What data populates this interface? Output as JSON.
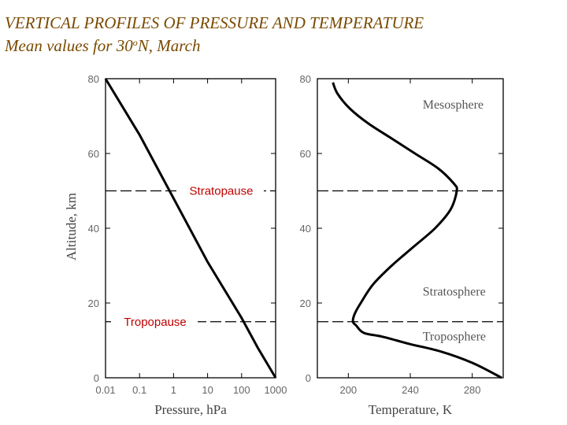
{
  "title_line1": "VERTICAL PROFILES OF PRESSURE AND TEMPERATURE",
  "subtitle": {
    "prefix": "Mean values for 30",
    "sup": "o",
    "suffix": "N, March"
  },
  "colors": {
    "title": "#7a4a00",
    "annotation": "#c00000",
    "curve": "#000000"
  },
  "chart_data": [
    {
      "type": "line",
      "xlabel": "Pressure, hPa",
      "ylabel": "Altitude, km",
      "xscale": "log",
      "xlim": [
        0.01,
        1000
      ],
      "ylim": [
        0,
        80
      ],
      "xticks": [
        0.01,
        0.1,
        1,
        10,
        100,
        1000
      ],
      "xtick_labels": [
        "0.01",
        "0.1",
        "1",
        "10",
        "100",
        "1000"
      ],
      "yticks": [
        0,
        20,
        40,
        60,
        80
      ],
      "ytick_labels": [
        "0",
        "20",
        "40",
        "60",
        "80"
      ],
      "series": [
        {
          "x": [
            0.01,
            0.1,
            1,
            10,
            100,
            300,
            1000
          ],
          "y": [
            80,
            65,
            48,
            31,
            16,
            8,
            0
          ]
        }
      ],
      "reference_lines": [
        {
          "y": 50,
          "label": "Stratopause",
          "style": "dashed"
        },
        {
          "y": 15,
          "label": "Tropopause",
          "style": "dashed"
        }
      ]
    },
    {
      "type": "line",
      "xlabel": "Temperature, K",
      "ylabel": "",
      "xlim": [
        180,
        300
      ],
      "ylim": [
        0,
        80
      ],
      "xticks": [
        200,
        240,
        280
      ],
      "xtick_labels": [
        "200",
        "240",
        "280"
      ],
      "yticks": [
        0,
        20,
        40,
        60,
        80
      ],
      "ytick_labels": [
        "0",
        "20",
        "40",
        "60",
        "80"
      ],
      "series": [
        {
          "x": [
            299,
            280,
            260,
            240,
            222,
            210,
            205,
            203,
            204,
            208,
            216,
            228,
            242,
            256,
            266,
            270,
            268,
            258,
            243,
            228,
            213,
            201,
            193,
            190
          ],
          "y": [
            0,
            4,
            7,
            9,
            11,
            12,
            14,
            15,
            17,
            20,
            25,
            30,
            35,
            40,
            45,
            50,
            52,
            56,
            60,
            64,
            68,
            72,
            76,
            79
          ]
        }
      ],
      "reference_lines": [
        {
          "y": 50,
          "style": "dashed"
        },
        {
          "y": 15,
          "style": "dashed"
        }
      ],
      "annotations": [
        {
          "text": "Mesosphere",
          "x": 248,
          "y": 72
        },
        {
          "text": "Stratosphere",
          "x": 248,
          "y": 22
        },
        {
          "text": "Troposphere",
          "x": 248,
          "y": 10
        }
      ]
    }
  ]
}
